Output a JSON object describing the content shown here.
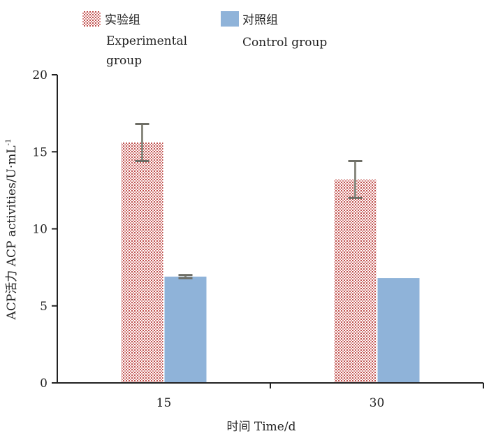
{
  "chart_data": {
    "type": "bar",
    "title": "",
    "xlabel": "时间 Time/d",
    "ylabel": "ACP活力 ACP activities/U·mL",
    "ylabel_superscript": "-1",
    "categories": [
      "15",
      "30"
    ],
    "ylim": [
      0,
      20
    ],
    "yticks": [
      "0",
      "5",
      "10",
      "15",
      "20"
    ],
    "series": [
      {
        "name_cn": "实验组",
        "name_en_line1": "Experimental",
        "name_en_line2": "group",
        "values": [
          15.6,
          13.2
        ],
        "errors": [
          1.2,
          1.2
        ],
        "color": "#c0504d",
        "pattern": "dots"
      },
      {
        "name_cn": "对照组",
        "name_en_line1": "Control group",
        "values": [
          6.9,
          6.8
        ],
        "errors": [
          0.1,
          0.0
        ],
        "color": "#8fb3d9",
        "pattern": "solid"
      }
    ],
    "legend_position": "top-left",
    "grid": false
  }
}
